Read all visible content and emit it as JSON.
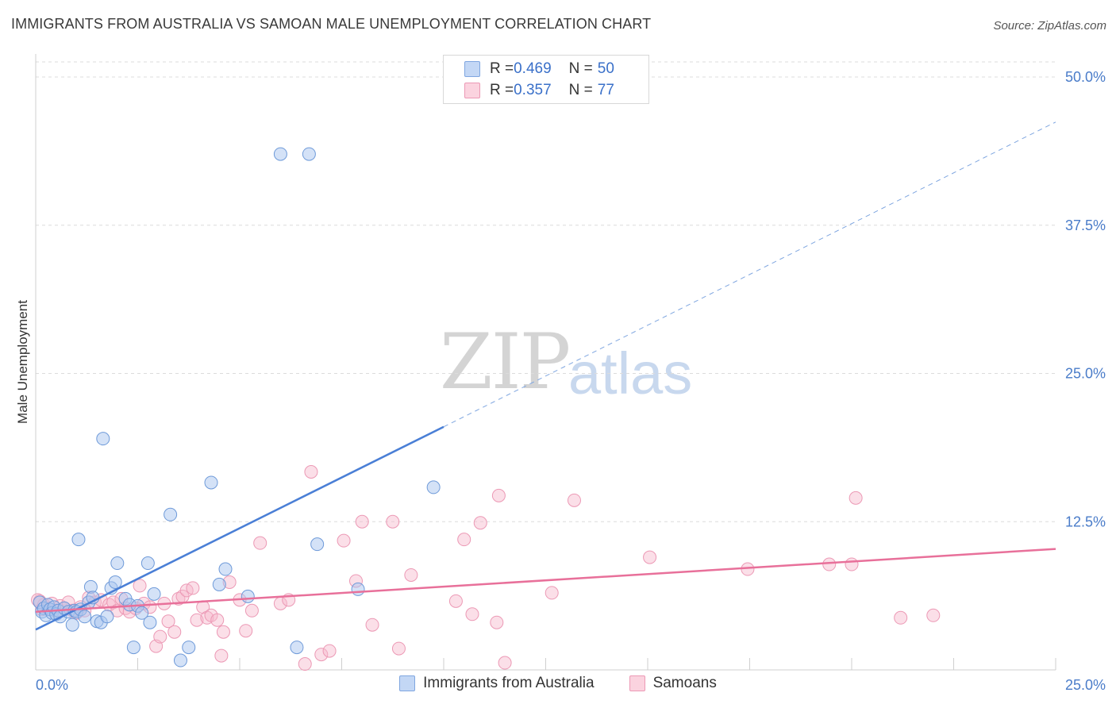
{
  "header": {
    "title": "IMMIGRANTS FROM AUSTRALIA VS SAMOAN MALE UNEMPLOYMENT CORRELATION CHART",
    "source": "Source: ZipAtlas.com"
  },
  "watermark": {
    "part1": "ZIP",
    "part2": "atlas"
  },
  "legend": {
    "rows": [
      {
        "r_label": "R = ",
        "r_value": "0.469",
        "n_label": "N = ",
        "n_value": "50",
        "color": "#a9c6ef"
      },
      {
        "r_label": "R = ",
        "r_value": "0.357",
        "n_label": "N = ",
        "n_value": "77",
        "color": "#f6b9cb"
      }
    ]
  },
  "bottom_legend": {
    "items": [
      {
        "label": "Immigrants from Australia",
        "color": "#a9c6ef"
      },
      {
        "label": "Samoans",
        "color": "#f6b9cb"
      }
    ]
  },
  "chart_data": {
    "type": "scatter",
    "title": "IMMIGRANTS FROM AUSTRALIA VS SAMOAN MALE UNEMPLOYMENT CORRELATION CHART",
    "xlabel": "",
    "ylabel": "Male Unemployment",
    "xlim": [
      0,
      25
    ],
    "ylim": [
      0,
      50
    ],
    "x_tick_labels": [
      "0.0%",
      "25.0%"
    ],
    "y_tick_labels": [
      "12.5%",
      "25.0%",
      "37.5%",
      "50.0%"
    ],
    "y_ticks": [
      12.5,
      25.0,
      37.5,
      50.0
    ],
    "grid": true,
    "colors": {
      "blue": "#4a7fd6",
      "pink": "#e8709a",
      "blue_fill": "#a9c6ef",
      "pink_fill": "#f6b9cb"
    },
    "series": [
      {
        "name": "Immigrants from Australia",
        "color": "#4a7fd6",
        "points": [
          [
            0.1,
            5.7
          ],
          [
            0.15,
            4.9
          ],
          [
            0.2,
            5.2
          ],
          [
            0.25,
            4.6
          ],
          [
            0.3,
            5.5
          ],
          [
            0.35,
            5.1
          ],
          [
            0.4,
            4.8
          ],
          [
            0.45,
            5.3
          ],
          [
            0.5,
            4.7
          ],
          [
            0.55,
            5.0
          ],
          [
            0.6,
            4.5
          ],
          [
            0.7,
            5.2
          ],
          [
            0.8,
            4.9
          ],
          [
            0.9,
            3.8
          ],
          [
            0.95,
            5.0
          ],
          [
            1.0,
            4.9
          ],
          [
            1.05,
            11.0
          ],
          [
            1.1,
            5.1
          ],
          [
            1.2,
            4.5
          ],
          [
            1.3,
            5.7
          ],
          [
            1.35,
            7.0
          ],
          [
            1.4,
            6.1
          ],
          [
            1.5,
            4.1
          ],
          [
            1.6,
            4.0
          ],
          [
            1.65,
            19.5
          ],
          [
            1.75,
            4.5
          ],
          [
            1.85,
            6.9
          ],
          [
            1.95,
            7.4
          ],
          [
            2.0,
            9.0
          ],
          [
            2.2,
            6.0
          ],
          [
            2.3,
            5.5
          ],
          [
            2.4,
            1.9
          ],
          [
            2.5,
            5.4
          ],
          [
            2.6,
            4.8
          ],
          [
            2.75,
            9.0
          ],
          [
            2.8,
            4.0
          ],
          [
            2.9,
            6.4
          ],
          [
            3.3,
            13.1
          ],
          [
            3.55,
            0.8
          ],
          [
            3.75,
            1.9
          ],
          [
            4.3,
            15.8
          ],
          [
            4.5,
            7.2
          ],
          [
            4.65,
            8.5
          ],
          [
            5.2,
            6.2
          ],
          [
            6.0,
            43.5
          ],
          [
            6.4,
            1.9
          ],
          [
            6.7,
            43.5
          ],
          [
            6.9,
            10.6
          ],
          [
            7.9,
            6.8
          ],
          [
            9.75,
            15.4
          ]
        ]
      },
      {
        "name": "Samoans",
        "color": "#e8709a",
        "points": [
          [
            0.1,
            5.8
          ],
          [
            0.15,
            5.1
          ],
          [
            0.2,
            5.5
          ],
          [
            0.3,
            5.2
          ],
          [
            0.4,
            5.6
          ],
          [
            0.5,
            5.0
          ],
          [
            0.6,
            5.4
          ],
          [
            0.7,
            5.2
          ],
          [
            0.8,
            5.7
          ],
          [
            0.9,
            5.0
          ],
          [
            1.0,
            4.8
          ],
          [
            1.1,
            5.3
          ],
          [
            1.2,
            5.0
          ],
          [
            1.3,
            6.1
          ],
          [
            1.45,
            5.7
          ],
          [
            1.6,
            5.9
          ],
          [
            1.8,
            5.5
          ],
          [
            1.9,
            5.7
          ],
          [
            2.0,
            5.0
          ],
          [
            2.1,
            6.0
          ],
          [
            2.2,
            5.2
          ],
          [
            2.3,
            4.9
          ],
          [
            2.45,
            5.2
          ],
          [
            2.55,
            7.1
          ],
          [
            2.65,
            5.6
          ],
          [
            2.8,
            5.3
          ],
          [
            2.95,
            2.0
          ],
          [
            3.05,
            2.8
          ],
          [
            3.15,
            5.6
          ],
          [
            3.25,
            4.1
          ],
          [
            3.4,
            3.2
          ],
          [
            3.5,
            6.0
          ],
          [
            3.6,
            6.2
          ],
          [
            3.7,
            6.7
          ],
          [
            3.85,
            6.9
          ],
          [
            3.95,
            4.2
          ],
          [
            4.1,
            5.3
          ],
          [
            4.2,
            4.4
          ],
          [
            4.3,
            4.6
          ],
          [
            4.45,
            4.2
          ],
          [
            4.55,
            1.2
          ],
          [
            4.6,
            3.2
          ],
          [
            4.75,
            7.4
          ],
          [
            5.0,
            5.9
          ],
          [
            5.15,
            3.3
          ],
          [
            5.3,
            5.0
          ],
          [
            5.5,
            10.7
          ],
          [
            6.0,
            5.6
          ],
          [
            6.2,
            5.9
          ],
          [
            6.6,
            0.5
          ],
          [
            6.75,
            16.7
          ],
          [
            7.0,
            1.3
          ],
          [
            7.2,
            1.6
          ],
          [
            7.55,
            10.9
          ],
          [
            7.85,
            7.5
          ],
          [
            8.0,
            12.5
          ],
          [
            8.25,
            3.8
          ],
          [
            8.75,
            12.5
          ],
          [
            8.9,
            1.8
          ],
          [
            9.2,
            8.0
          ],
          [
            10.3,
            5.8
          ],
          [
            10.5,
            11.0
          ],
          [
            10.7,
            4.7
          ],
          [
            10.9,
            12.4
          ],
          [
            11.3,
            4.0
          ],
          [
            11.35,
            14.7
          ],
          [
            11.5,
            0.6
          ],
          [
            12.65,
            6.5
          ],
          [
            13.2,
            14.3
          ],
          [
            15.05,
            9.5
          ],
          [
            17.45,
            8.5
          ],
          [
            19.45,
            8.9
          ],
          [
            20.0,
            8.9
          ],
          [
            20.1,
            14.5
          ],
          [
            21.2,
            4.4
          ],
          [
            22.0,
            4.6
          ],
          [
            0.05,
            5.9
          ]
        ]
      }
    ],
    "trendlines": [
      {
        "series": "Immigrants from Australia",
        "x": [
          0,
          10.0
        ],
        "y": [
          3.4,
          20.5
        ],
        "style": "solid",
        "extension": {
          "x": [
            10.0,
            25.0
          ],
          "y": [
            20.5,
            46.2
          ],
          "style": "dashed"
        }
      },
      {
        "series": "Samoans",
        "x": [
          0,
          25.0
        ],
        "y": [
          4.9,
          10.2
        ],
        "style": "solid"
      }
    ]
  }
}
